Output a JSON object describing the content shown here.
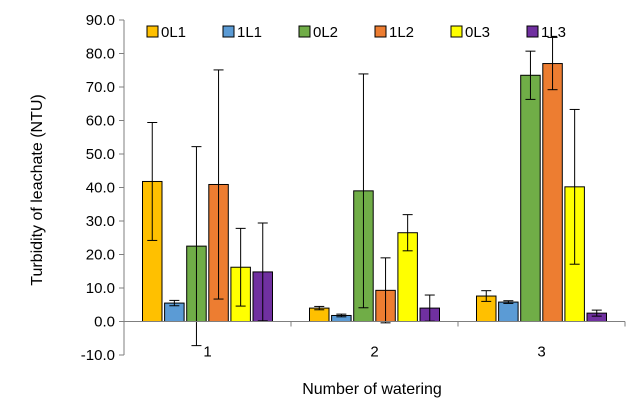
{
  "chart_data": {
    "type": "bar",
    "xlabel": "Number of watering",
    "ylabel": "Turbidity of leachate (NTU)",
    "ylim": [
      -10,
      90
    ],
    "yticks": [
      "-10.0",
      "0.0",
      "10.0",
      "20.0",
      "30.0",
      "40.0",
      "50.0",
      "60.0",
      "70.0",
      "80.0",
      "90.0"
    ],
    "categories": [
      "1",
      "2",
      "3"
    ],
    "legend_position": "top",
    "grid": false,
    "error_bars": true,
    "series": [
      {
        "name": "0L1",
        "color": "#FFC000",
        "values": [
          41.8,
          4.0,
          7.6
        ],
        "errors": [
          17.6,
          0.5,
          1.6
        ]
      },
      {
        "name": "1L1",
        "color": "#5B9BD5",
        "values": [
          5.5,
          1.8,
          5.8
        ],
        "errors": [
          0.8,
          0.4,
          0.4
        ]
      },
      {
        "name": "0L2",
        "color": "#70AD47",
        "values": [
          22.5,
          39.0,
          73.5
        ],
        "errors": [
          29.7,
          34.9,
          7.2
        ]
      },
      {
        "name": "1L2",
        "color": "#ED7D31",
        "values": [
          40.9,
          9.3,
          77.0
        ],
        "errors": [
          34.2,
          9.7,
          7.8
        ]
      },
      {
        "name": "0L3",
        "color": "#FFFF00",
        "values": [
          16.2,
          26.5,
          40.2
        ],
        "errors": [
          11.6,
          5.4,
          23.1
        ]
      },
      {
        "name": "1L3",
        "color": "#7030A0",
        "values": [
          14.8,
          4.0,
          2.5
        ],
        "errors": [
          14.6,
          3.9,
          0.9
        ]
      }
    ]
  }
}
